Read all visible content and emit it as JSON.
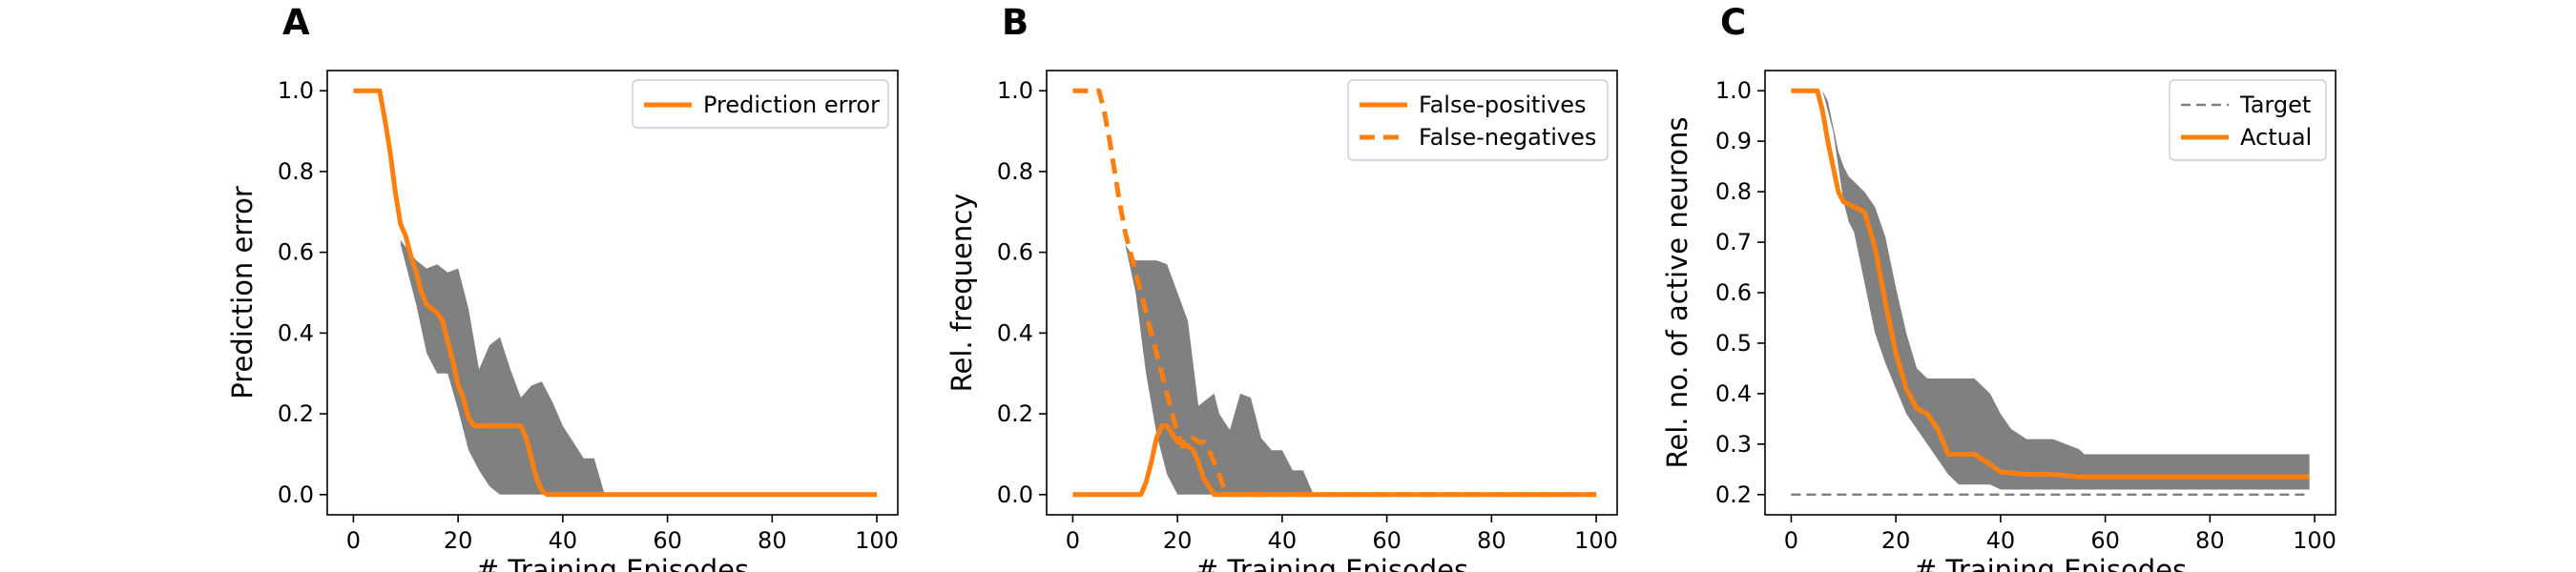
{
  "colors": {
    "line": "#ff7f0e",
    "band": "#808080",
    "target": "#808080",
    "axis": "#000000"
  },
  "chart_data": [
    {
      "type": "line",
      "panel_label": "A",
      "xlabel": "# Training Episodes",
      "ylabel": "Prediction error",
      "xlim": [
        -5,
        104
      ],
      "ylim": [
        -0.05,
        1.05
      ],
      "xticks": [
        0,
        20,
        40,
        60,
        80,
        100
      ],
      "yticks": [
        0.0,
        0.2,
        0.4,
        0.6,
        0.8,
        1.0
      ],
      "ytick_labels": [
        "0.0",
        "0.2",
        "0.4",
        "0.6",
        "0.8",
        "1.0"
      ],
      "legend_position": "upper right",
      "band": {
        "x": [
          9,
          12,
          14,
          16,
          18,
          20,
          22,
          24,
          26,
          28,
          30,
          32,
          34,
          36,
          38,
          40,
          42,
          44,
          46,
          48
        ],
        "lower": [
          0.62,
          0.47,
          0.35,
          0.3,
          0.3,
          0.21,
          0.11,
          0.06,
          0.02,
          0.0,
          0.0,
          0.0,
          0.0,
          0.0,
          0.0,
          0.0,
          0.0,
          0.0,
          0.0,
          0.0
        ],
        "upper": [
          0.63,
          0.58,
          0.56,
          0.57,
          0.55,
          0.56,
          0.46,
          0.31,
          0.37,
          0.39,
          0.31,
          0.24,
          0.27,
          0.28,
          0.23,
          0.17,
          0.13,
          0.09,
          0.09,
          0.0
        ]
      },
      "series": [
        {
          "name": "Prediction error",
          "style": "solid",
          "x": [
            0,
            5,
            6,
            7,
            8,
            9,
            10,
            11,
            12,
            13,
            14,
            15,
            16,
            17,
            18,
            19,
            20,
            21,
            22,
            23,
            24,
            26,
            28,
            30,
            32,
            33,
            34,
            35,
            36,
            37,
            100
          ],
          "y": [
            1.0,
            1.0,
            0.93,
            0.85,
            0.75,
            0.67,
            0.64,
            0.59,
            0.55,
            0.5,
            0.47,
            0.46,
            0.45,
            0.43,
            0.38,
            0.33,
            0.27,
            0.24,
            0.19,
            0.17,
            0.17,
            0.17,
            0.17,
            0.17,
            0.17,
            0.14,
            0.09,
            0.04,
            0.01,
            0.0,
            0.0
          ]
        }
      ]
    },
    {
      "type": "line",
      "panel_label": "B",
      "xlabel": "# Training Episodes",
      "ylabel": "Rel. frequency",
      "xlim": [
        -5,
        104
      ],
      "ylim": [
        -0.05,
        1.05
      ],
      "xticks": [
        0,
        20,
        40,
        60,
        80,
        100
      ],
      "yticks": [
        0.0,
        0.2,
        0.4,
        0.6,
        0.8,
        1.0
      ],
      "ytick_labels": [
        "0.0",
        "0.2",
        "0.4",
        "0.6",
        "0.8",
        "1.0"
      ],
      "legend_position": "upper right",
      "band": {
        "x": [
          10,
          12,
          14,
          16,
          18,
          20,
          22,
          24,
          26,
          27,
          28,
          30,
          32,
          34,
          36,
          38,
          40,
          42,
          44,
          46
        ],
        "lower": [
          0.62,
          0.5,
          0.3,
          0.15,
          0.05,
          0.0,
          0.0,
          0.0,
          0.0,
          0.0,
          0.0,
          0.0,
          0.0,
          0.0,
          0.0,
          0.0,
          0.0,
          0.0,
          0.0,
          0.0
        ],
        "upper": [
          0.62,
          0.58,
          0.58,
          0.58,
          0.57,
          0.5,
          0.43,
          0.22,
          0.24,
          0.25,
          0.2,
          0.16,
          0.25,
          0.24,
          0.14,
          0.11,
          0.11,
          0.06,
          0.06,
          0.0
        ]
      },
      "series": [
        {
          "name": "False-positives",
          "style": "solid",
          "x": [
            0,
            13,
            14,
            15,
            16,
            17,
            18,
            19,
            20,
            21,
            22,
            23,
            24,
            25,
            26,
            27,
            28,
            100
          ],
          "y": [
            0.0,
            0.0,
            0.03,
            0.08,
            0.14,
            0.17,
            0.17,
            0.15,
            0.13,
            0.13,
            0.12,
            0.11,
            0.08,
            0.04,
            0.02,
            0.0,
            0.0,
            0.0
          ]
        },
        {
          "name": "False-negatives",
          "style": "dashed",
          "x": [
            0,
            5,
            6,
            7,
            8,
            9,
            10,
            11,
            12,
            13,
            14,
            15,
            16,
            17,
            18,
            19,
            20,
            21,
            22,
            23,
            24,
            25,
            26,
            27,
            28,
            29,
            30,
            100
          ],
          "y": [
            1.0,
            1.0,
            0.95,
            0.88,
            0.8,
            0.72,
            0.65,
            0.6,
            0.55,
            0.5,
            0.45,
            0.4,
            0.35,
            0.3,
            0.25,
            0.2,
            0.15,
            0.12,
            0.12,
            0.14,
            0.13,
            0.13,
            0.11,
            0.08,
            0.05,
            0.01,
            0.0,
            0.0
          ]
        }
      ]
    },
    {
      "type": "line",
      "panel_label": "C",
      "xlabel": "# Training Episodes",
      "ylabel": "Rel. no. of active neurons",
      "xlim": [
        -5,
        104
      ],
      "ylim": [
        0.16,
        1.04
      ],
      "xticks": [
        0,
        20,
        40,
        60,
        80,
        100
      ],
      "yticks": [
        0.2,
        0.3,
        0.4,
        0.5,
        0.6,
        0.7,
        0.8,
        0.9,
        1.0
      ],
      "ytick_labels": [
        "0.2",
        "0.3",
        "0.4",
        "0.5",
        "0.6",
        "0.7",
        "0.8",
        "0.9",
        "1.0"
      ],
      "legend_position": "upper right",
      "band": {
        "x": [
          6,
          7,
          8,
          9,
          10,
          11,
          12,
          14,
          16,
          18,
          20,
          22,
          24,
          26,
          28,
          30,
          32,
          35,
          38,
          40,
          42,
          45,
          50,
          55,
          56,
          60,
          70,
          80,
          90,
          99
        ],
        "lower": [
          1.0,
          0.96,
          0.92,
          0.85,
          0.78,
          0.74,
          0.72,
          0.62,
          0.52,
          0.46,
          0.41,
          0.36,
          0.33,
          0.3,
          0.27,
          0.24,
          0.22,
          0.22,
          0.22,
          0.21,
          0.21,
          0.21,
          0.21,
          0.21,
          0.21,
          0.21,
          0.21,
          0.21,
          0.21,
          0.21
        ],
        "upper": [
          1.0,
          0.98,
          0.93,
          0.88,
          0.85,
          0.83,
          0.82,
          0.8,
          0.77,
          0.71,
          0.61,
          0.52,
          0.45,
          0.43,
          0.43,
          0.43,
          0.43,
          0.43,
          0.4,
          0.36,
          0.33,
          0.31,
          0.31,
          0.29,
          0.28,
          0.28,
          0.28,
          0.28,
          0.28,
          0.28
        ]
      },
      "series": [
        {
          "name": "Target",
          "style": "dashed-thin",
          "x": [
            0,
            99
          ],
          "y": [
            0.2,
            0.2
          ]
        },
        {
          "name": "Actual",
          "style": "solid",
          "x": [
            0,
            5,
            6,
            7,
            8,
            9,
            10,
            12,
            14,
            16,
            18,
            20,
            22,
            24,
            26,
            28,
            30,
            33,
            35,
            38,
            40,
            45,
            50,
            55,
            60,
            70,
            80,
            90,
            99
          ],
          "y": [
            1.0,
            1.0,
            0.96,
            0.9,
            0.85,
            0.8,
            0.78,
            0.77,
            0.76,
            0.69,
            0.58,
            0.48,
            0.41,
            0.37,
            0.36,
            0.33,
            0.28,
            0.28,
            0.28,
            0.26,
            0.245,
            0.24,
            0.24,
            0.235,
            0.235,
            0.235,
            0.235,
            0.235,
            0.235
          ]
        }
      ]
    }
  ]
}
